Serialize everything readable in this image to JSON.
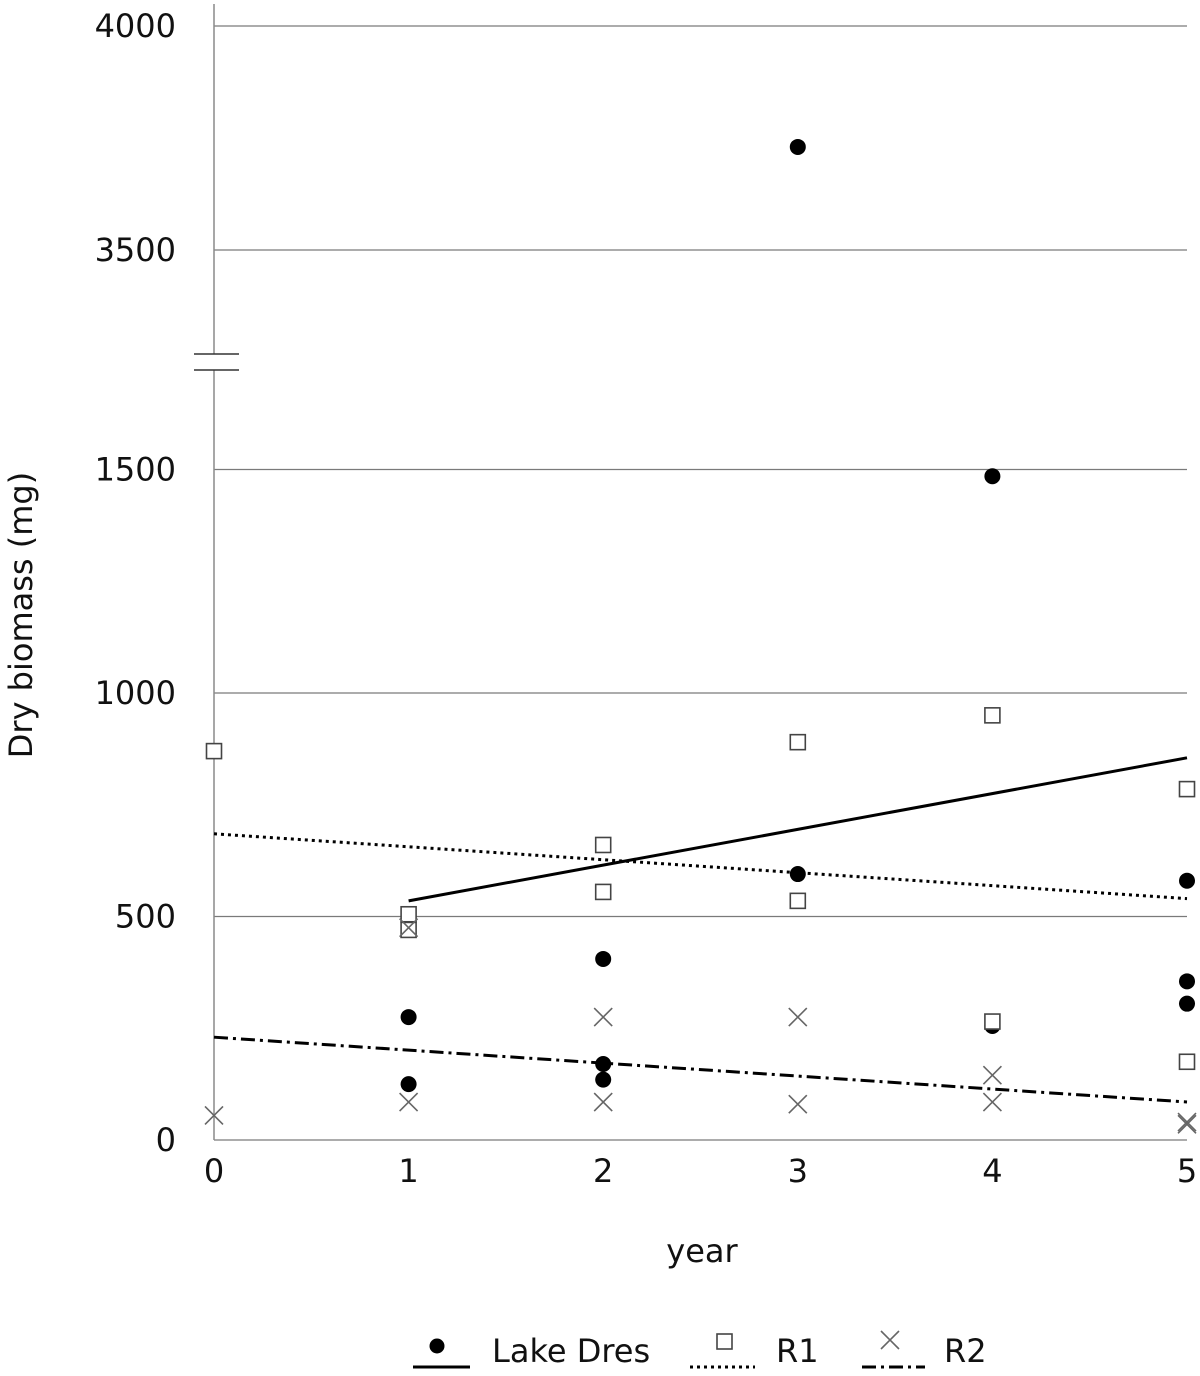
{
  "chart_data": {
    "type": "scatter",
    "xlabel": "year",
    "ylabel": "Dry biomass (mg)",
    "xlim": [
      0,
      5
    ],
    "y_axis_break": {
      "lower_range": [
        0,
        1500
      ],
      "upper_range": [
        3500,
        4000
      ]
    },
    "x_ticks": [
      "0",
      "1",
      "2",
      "3",
      "4",
      "5"
    ],
    "y_ticks": [
      "0",
      "500",
      "1000",
      "1500",
      "3500",
      "4000"
    ],
    "y_tick_values": [
      0,
      500,
      1000,
      1500,
      3500,
      4000
    ],
    "grid": true,
    "legend_position": "bottom",
    "series": [
      {
        "name": "Lake Dres",
        "marker": "filled-circle",
        "line_style": "solid",
        "color": "#000000",
        "points": [
          [
            1,
            125
          ],
          [
            1,
            275
          ],
          [
            2,
            135
          ],
          [
            2,
            170
          ],
          [
            2,
            405
          ],
          [
            3,
            595
          ],
          [
            3,
            3730
          ],
          [
            4,
            255
          ],
          [
            4,
            1485
          ],
          [
            5,
            305
          ],
          [
            5,
            355
          ],
          [
            5,
            580
          ]
        ],
        "trendline": {
          "x": [
            1,
            5
          ],
          "y": [
            535,
            855
          ]
        }
      },
      {
        "name": "R1",
        "marker": "open-square",
        "line_style": "dotted",
        "color": "#555555",
        "points": [
          [
            0,
            870
          ],
          [
            1,
            470
          ],
          [
            1,
            505
          ],
          [
            2,
            555
          ],
          [
            2,
            660
          ],
          [
            3,
            535
          ],
          [
            3,
            890
          ],
          [
            4,
            265
          ],
          [
            4,
            950
          ],
          [
            5,
            175
          ],
          [
            5,
            785
          ]
        ],
        "trendline": {
          "x": [
            0,
            5
          ],
          "y": [
            685,
            540
          ]
        }
      },
      {
        "name": "R2",
        "marker": "cross",
        "line_style": "dash-dot",
        "color": "#555555",
        "points": [
          [
            0,
            55
          ],
          [
            1,
            85
          ],
          [
            1,
            475
          ],
          [
            2,
            85
          ],
          [
            2,
            275
          ],
          [
            3,
            80
          ],
          [
            3,
            275
          ],
          [
            4,
            85
          ],
          [
            4,
            145
          ],
          [
            5,
            35
          ],
          [
            5,
            40
          ]
        ],
        "trendline": {
          "x": [
            0,
            5
          ],
          "y": [
            230,
            85
          ]
        }
      }
    ]
  }
}
